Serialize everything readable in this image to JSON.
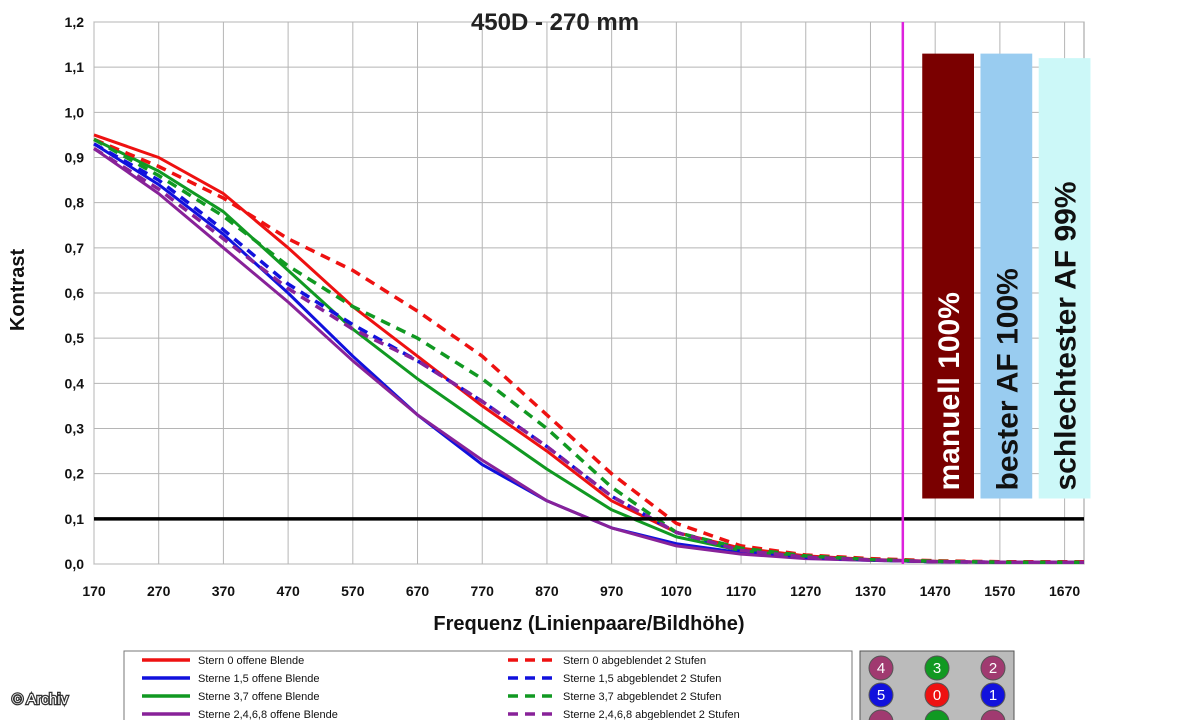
{
  "chart_data": {
    "type": "line",
    "title": "450D - 270 mm",
    "xlabel": "Frequenz (Linienpaare/Bildhöhe)",
    "ylabel": "Kontrast",
    "xlim": [
      170,
      1700
    ],
    "ylim": [
      0,
      1.2
    ],
    "xticks": [
      "170",
      "270",
      "370",
      "470",
      "570",
      "670",
      "770",
      "870",
      "970",
      "1070",
      "1170",
      "1270",
      "1370",
      "1470",
      "1570",
      "1670"
    ],
    "yticks": [
      "0,0",
      "0,1",
      "0,2",
      "0,3",
      "0,4",
      "0,5",
      "0,6",
      "0,7",
      "0,8",
      "0,9",
      "1,0",
      "1,1",
      "1,2"
    ],
    "grid": true,
    "series": [
      {
        "name": "Stern 0 offene Blende",
        "color": "#ee1111",
        "dashed": false,
        "x": [
          170,
          270,
          370,
          470,
          570,
          670,
          770,
          870,
          970,
          1070,
          1170,
          1270,
          1370,
          1470,
          1570,
          1700
        ],
        "y": [
          0.95,
          0.9,
          0.82,
          0.7,
          0.57,
          0.46,
          0.35,
          0.25,
          0.14,
          0.07,
          0.035,
          0.018,
          0.01,
          0.006,
          0.004,
          0.004
        ]
      },
      {
        "name": "Sterne 1,5 offene Blende",
        "color": "#1111dd",
        "dashed": false,
        "x": [
          170,
          270,
          370,
          470,
          570,
          670,
          770,
          870,
          970,
          1070,
          1170,
          1270,
          1370,
          1470,
          1570,
          1700
        ],
        "y": [
          0.93,
          0.84,
          0.73,
          0.6,
          0.46,
          0.33,
          0.22,
          0.14,
          0.08,
          0.045,
          0.025,
          0.013,
          0.008,
          0.005,
          0.004,
          0.004
        ]
      },
      {
        "name": "Sterne 3,7 offene Blende",
        "color": "#119922",
        "dashed": false,
        "x": [
          170,
          270,
          370,
          470,
          570,
          670,
          770,
          870,
          970,
          1070,
          1170,
          1270,
          1370,
          1470,
          1570,
          1700
        ],
        "y": [
          0.94,
          0.87,
          0.78,
          0.65,
          0.52,
          0.41,
          0.31,
          0.21,
          0.12,
          0.06,
          0.03,
          0.015,
          0.009,
          0.005,
          0.004,
          0.004
        ]
      },
      {
        "name": "Sterne 2,4,6,8 offene Blende",
        "color": "#882299",
        "dashed": false,
        "x": [
          170,
          270,
          370,
          470,
          570,
          670,
          770,
          870,
          970,
          1070,
          1170,
          1270,
          1370,
          1470,
          1570,
          1700
        ],
        "y": [
          0.92,
          0.82,
          0.7,
          0.58,
          0.45,
          0.33,
          0.23,
          0.14,
          0.08,
          0.04,
          0.022,
          0.012,
          0.008,
          0.005,
          0.004,
          0.004
        ]
      },
      {
        "name": "Stern 0 abgeblendet 2 Stufen",
        "color": "#ee1111",
        "dashed": true,
        "x": [
          170,
          270,
          370,
          470,
          570,
          670,
          770,
          870,
          970,
          1070,
          1170,
          1270,
          1370,
          1470,
          1570,
          1700
        ],
        "y": [
          0.94,
          0.88,
          0.81,
          0.72,
          0.65,
          0.56,
          0.46,
          0.33,
          0.2,
          0.09,
          0.04,
          0.02,
          0.012,
          0.007,
          0.005,
          0.005
        ]
      },
      {
        "name": "Sterne 1,5 abgeblendet 2 Stufen",
        "color": "#1111dd",
        "dashed": true,
        "x": [
          170,
          270,
          370,
          470,
          570,
          670,
          770,
          870,
          970,
          1070,
          1170,
          1270,
          1370,
          1470,
          1570,
          1700
        ],
        "y": [
          0.93,
          0.85,
          0.74,
          0.62,
          0.53,
          0.45,
          0.36,
          0.26,
          0.15,
          0.07,
          0.03,
          0.015,
          0.009,
          0.005,
          0.004,
          0.004
        ]
      },
      {
        "name": "Sterne 3,7 abgeblendet 2 Stufen",
        "color": "#119922",
        "dashed": true,
        "x": [
          170,
          270,
          370,
          470,
          570,
          670,
          770,
          870,
          970,
          1070,
          1170,
          1270,
          1370,
          1470,
          1570,
          1700
        ],
        "y": [
          0.94,
          0.86,
          0.77,
          0.66,
          0.57,
          0.5,
          0.41,
          0.3,
          0.17,
          0.07,
          0.035,
          0.018,
          0.01,
          0.006,
          0.004,
          0.004
        ]
      },
      {
        "name": "Sterne 2,4,6,8 abgeblendet 2 Stufen",
        "color": "#882299",
        "dashed": true,
        "x": [
          170,
          270,
          370,
          470,
          570,
          670,
          770,
          870,
          970,
          1070,
          1170,
          1270,
          1370,
          1470,
          1570,
          1700
        ],
        "y": [
          0.92,
          0.83,
          0.72,
          0.61,
          0.52,
          0.45,
          0.36,
          0.26,
          0.15,
          0.07,
          0.03,
          0.015,
          0.009,
          0.005,
          0.004,
          0.004
        ]
      }
    ],
    "reference_lines": {
      "horizontal_y": 0.1,
      "horizontal_color": "#000000",
      "vertical_x": 1420,
      "vertical_color": "#dd22dd"
    },
    "bars": [
      {
        "label": "manuell 100%",
        "value": 1.13,
        "x_from": 1450,
        "x_to": 1530,
        "color": "#7a0000",
        "text_color": "#ffffff"
      },
      {
        "label": "bester AF 100%",
        "value": 1.13,
        "x_from": 1540,
        "x_to": 1620,
        "color": "#99ccf0",
        "text_color": "#111111"
      },
      {
        "label": "schlechtester AF 99%",
        "value": 1.12,
        "x_from": 1630,
        "x_to": 1710,
        "color": "#ccf8f8",
        "text_color": "#111111"
      }
    ],
    "legend_placement": "bottom"
  },
  "star_key": [
    {
      "num": "4",
      "color": "#a03a70"
    },
    {
      "num": "3",
      "color": "#119922"
    },
    {
      "num": "2",
      "color": "#a03a70"
    },
    {
      "num": "5",
      "color": "#1111dd"
    },
    {
      "num": "0",
      "color": "#ee1111"
    },
    {
      "num": "1",
      "color": "#1111dd"
    },
    {
      "num": "",
      "color": "#a03a70"
    },
    {
      "num": "",
      "color": "#119922"
    },
    {
      "num": "",
      "color": "#a03a70"
    }
  ],
  "credit": "© Archiv"
}
